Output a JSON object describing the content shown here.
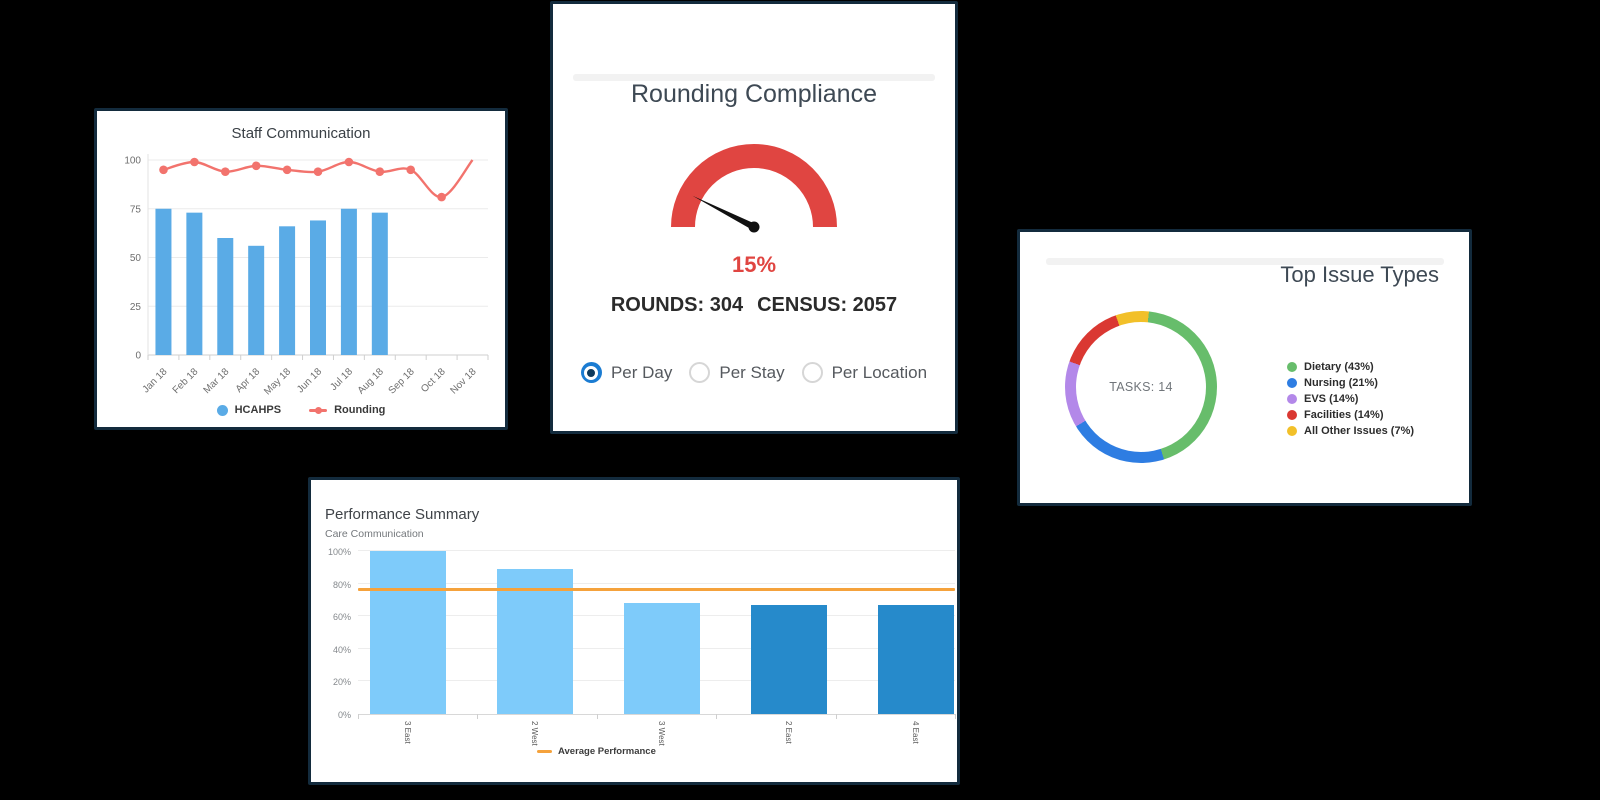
{
  "theme": {
    "page_background": "#000000",
    "card_background": "#ffffff",
    "card_border": "#132b3d"
  },
  "chart_data": [
    {
      "id": "staff-communication",
      "type": "bar+line",
      "title": "Staff Communication",
      "categories": [
        "Jan 18",
        "Feb 18",
        "Mar 18",
        "Apr 18",
        "May 18",
        "Jun 18",
        "Jul 18",
        "Aug 18",
        "Sep 18",
        "Oct 18",
        "Nov 18"
      ],
      "ylim": [
        0,
        100
      ],
      "y_ticks": [
        0,
        25,
        50,
        75,
        100
      ],
      "grid": true,
      "legend_position": "bottom",
      "series": [
        {
          "name": "HCAHPS",
          "type": "bar",
          "color": "#5aabe6",
          "values": [
            75,
            73,
            60,
            56,
            66,
            69,
            75,
            73,
            null,
            null,
            null
          ]
        },
        {
          "name": "Rounding",
          "type": "line",
          "color": "#f2736d",
          "values": [
            95,
            99,
            94,
            97,
            95,
            94,
            99,
            94,
            95,
            81,
            100
          ]
        }
      ]
    },
    {
      "id": "rounding-compliance",
      "type": "gauge",
      "title": "Rounding Compliance",
      "value": 15,
      "max": 100,
      "value_label": "15%",
      "color": "#e04541",
      "needle_color": "#111111",
      "stats": [
        "ROUNDS: 304",
        "CENSUS: 2057"
      ],
      "options": [
        {
          "label": "Per Day",
          "selected": true
        },
        {
          "label": "Per Stay",
          "selected": false
        },
        {
          "label": "Per Location",
          "selected": false
        }
      ]
    },
    {
      "id": "top-issue-types",
      "type": "pie",
      "donut": true,
      "title": "Top Issue Types",
      "center_label": "TASKS: 14",
      "rotation_deg": 6,
      "legend_position": "right",
      "segments": [
        {
          "label": "Dietary (43%)",
          "value": 43,
          "color": "#67bd6b"
        },
        {
          "label": "Nursing (21%)",
          "value": 21,
          "color": "#2e7de2"
        },
        {
          "label": "EVS (14%)",
          "value": 14,
          "color": "#b388e9"
        },
        {
          "label": "Facilities (14%)",
          "value": 14,
          "color": "#da3832"
        },
        {
          "label": "All Other Issues (7%)",
          "value": 7,
          "color": "#f2c029"
        }
      ]
    },
    {
      "id": "performance-summary",
      "type": "bar",
      "title": "Performance Summary",
      "subtitle": "Care Communication",
      "categories": [
        "3 East",
        "2 West",
        "3 West",
        "2 East",
        "4 East"
      ],
      "values": [
        100,
        89,
        68,
        67,
        67
      ],
      "bar_colors": [
        "#7ecbfa",
        "#7ecbfa",
        "#7ecbfa",
        "#268acb",
        "#268acb"
      ],
      "ylim": [
        0,
        100
      ],
      "y_tick_labels": [
        "0%",
        "20%",
        "40%",
        "60%",
        "80%",
        "100%"
      ],
      "grid": true,
      "average_line": {
        "label": "Average Performance",
        "value": 76,
        "color": "#f5a23c"
      }
    }
  ]
}
